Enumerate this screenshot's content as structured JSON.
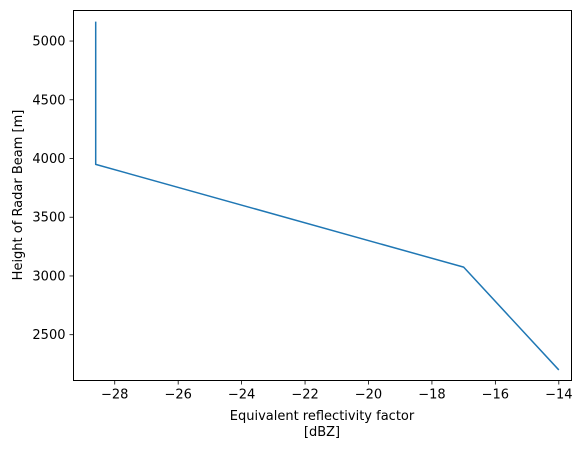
{
  "chart_data": {
    "type": "line",
    "title": "",
    "xlabel": "Equivalent reflectivity factor",
    "xlabel_unit": "[dBZ]",
    "ylabel": "Height of Radar Beam [m]",
    "xlim": [
      -29.3,
      -13.6
    ],
    "ylim": [
      2110,
      5260
    ],
    "xticks": [
      -28,
      -26,
      -24,
      -22,
      -20,
      -18,
      -16,
      -14
    ],
    "xtick_labels": [
      "−28",
      "−26",
      "−24",
      "−22",
      "−20",
      "−18",
      "−16",
      "−14"
    ],
    "yticks": [
      2500,
      3000,
      3500,
      4000,
      4500,
      5000
    ],
    "ytick_labels": [
      "2500",
      "3000",
      "3500",
      "4000",
      "4500",
      "5000"
    ],
    "grid": false,
    "legend": "none",
    "line_color": "#1f77b4",
    "series": [
      {
        "x": [
          -14.0,
          -17.0,
          -28.6,
          -28.6
        ],
        "y": [
          2200,
          3075,
          3950,
          5165
        ]
      }
    ]
  }
}
